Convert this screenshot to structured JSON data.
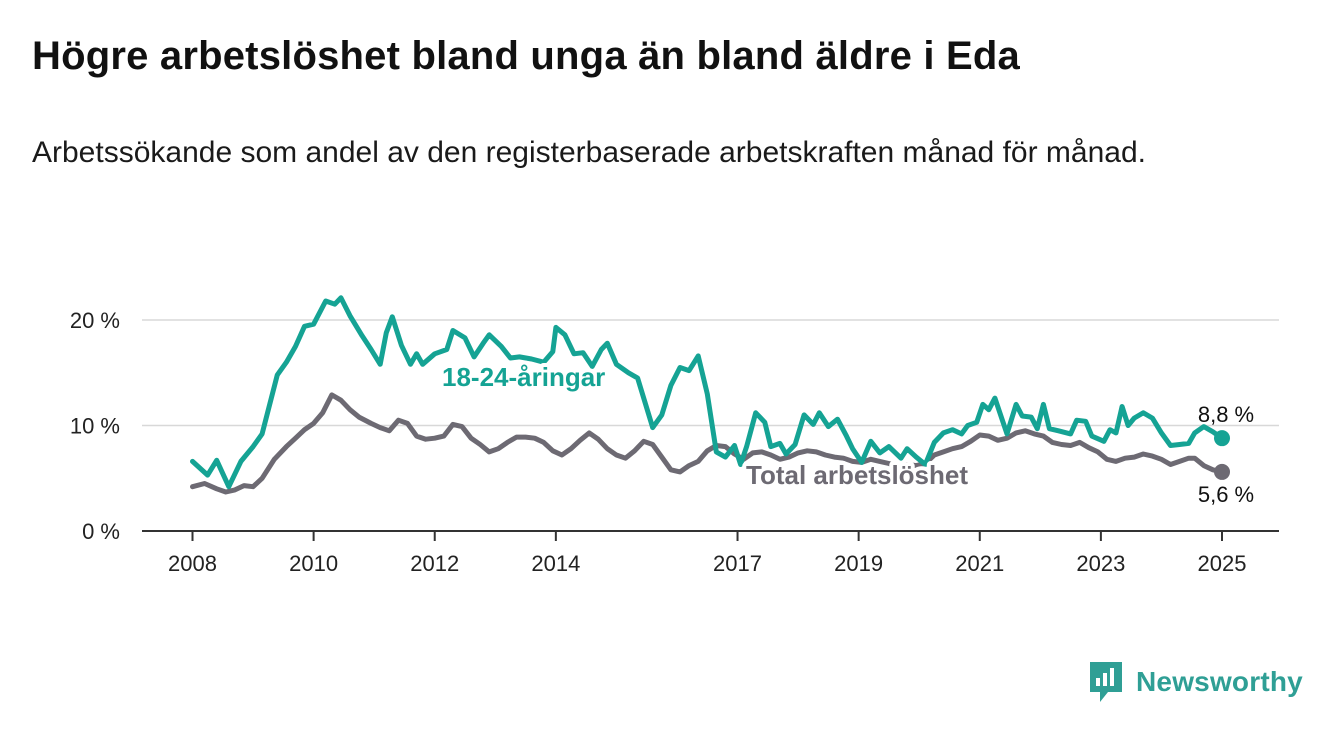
{
  "title": "Högre arbetslöshet bland unga än bland äldre i Eda",
  "subtitle": "Arbetssökande som andel av den registerbaserade arbetskraften månad för månad.",
  "brand": {
    "name": "Newsworthy",
    "icon": "newsworthy-logo-icon"
  },
  "colors": {
    "youth": "#15a394",
    "total": "#6d6a73",
    "axis": "#333333",
    "grid": "#d8d8d8"
  },
  "chart_data": {
    "type": "line",
    "title": "Högre arbetslöshet bland unga än bland äldre i Eda",
    "subtitle": "Arbetssökande som andel av den registerbaserade arbetskraften månad för månad.",
    "xlim": [
      2008,
      2025.35
    ],
    "ylim": [
      0,
      22.5
    ],
    "x_ticks": [
      2008,
      2010,
      2012,
      2014,
      2017,
      2019,
      2021,
      2023,
      2025
    ],
    "y_ticks": [
      0,
      10,
      20
    ],
    "y_tick_labels": [
      "0 %",
      "10 %",
      "20 %"
    ],
    "grid": "horizontal",
    "legend": "inline labels",
    "series": [
      {
        "name": "18-24-åringar",
        "color": "#15a394",
        "end_label": "8,8 %",
        "points": [
          [
            2008.0,
            6.6
          ],
          [
            2008.25,
            5.3
          ],
          [
            2008.4,
            6.7
          ],
          [
            2008.6,
            4.2
          ],
          [
            2008.8,
            6.6
          ],
          [
            2009.0,
            8.0
          ],
          [
            2009.15,
            9.2
          ],
          [
            2009.4,
            14.8
          ],
          [
            2009.55,
            16.0
          ],
          [
            2009.7,
            17.5
          ],
          [
            2009.85,
            19.4
          ],
          [
            2010.0,
            19.6
          ],
          [
            2010.2,
            21.8
          ],
          [
            2010.35,
            21.5
          ],
          [
            2010.45,
            22.1
          ],
          [
            2010.6,
            20.4
          ],
          [
            2010.8,
            18.5
          ],
          [
            2010.95,
            17.2
          ],
          [
            2011.1,
            15.8
          ],
          [
            2011.2,
            18.8
          ],
          [
            2011.3,
            20.3
          ],
          [
            2011.45,
            17.6
          ],
          [
            2011.6,
            15.8
          ],
          [
            2011.7,
            16.8
          ],
          [
            2011.8,
            15.8
          ],
          [
            2012.0,
            16.8
          ],
          [
            2012.2,
            17.2
          ],
          [
            2012.3,
            19.0
          ],
          [
            2012.5,
            18.3
          ],
          [
            2012.65,
            16.5
          ],
          [
            2012.8,
            17.8
          ],
          [
            2012.9,
            18.6
          ],
          [
            2013.1,
            17.5
          ],
          [
            2013.25,
            16.4
          ],
          [
            2013.4,
            16.5
          ],
          [
            2013.6,
            16.3
          ],
          [
            2013.8,
            16.0
          ],
          [
            2013.95,
            17.0
          ],
          [
            2014.0,
            19.3
          ],
          [
            2014.15,
            18.6
          ],
          [
            2014.3,
            16.8
          ],
          [
            2014.45,
            16.9
          ],
          [
            2014.6,
            15.6
          ],
          [
            2014.75,
            17.2
          ],
          [
            2014.85,
            17.8
          ],
          [
            2015.0,
            15.8
          ],
          [
            2015.2,
            15.0
          ],
          [
            2015.35,
            14.5
          ],
          [
            2015.6,
            9.8
          ],
          [
            2015.75,
            11.0
          ],
          [
            2015.9,
            13.8
          ],
          [
            2016.05,
            15.5
          ],
          [
            2016.2,
            15.2
          ],
          [
            2016.35,
            16.6
          ],
          [
            2016.5,
            13.0
          ],
          [
            2016.65,
            7.5
          ],
          [
            2016.8,
            7.0
          ],
          [
            2016.95,
            8.1
          ],
          [
            2017.05,
            6.3
          ],
          [
            2017.15,
            8.0
          ],
          [
            2017.3,
            11.2
          ],
          [
            2017.45,
            10.3
          ],
          [
            2017.55,
            8.0
          ],
          [
            2017.7,
            8.3
          ],
          [
            2017.8,
            7.3
          ],
          [
            2017.95,
            8.2
          ],
          [
            2018.1,
            11.0
          ],
          [
            2018.25,
            10.1
          ],
          [
            2018.35,
            11.2
          ],
          [
            2018.5,
            9.9
          ],
          [
            2018.65,
            10.6
          ],
          [
            2018.8,
            9.0
          ],
          [
            2018.9,
            7.8
          ],
          [
            2019.05,
            6.5
          ],
          [
            2019.2,
            8.5
          ],
          [
            2019.35,
            7.4
          ],
          [
            2019.5,
            8.0
          ],
          [
            2019.7,
            6.9
          ],
          [
            2019.8,
            7.8
          ],
          [
            2019.95,
            7.0
          ],
          [
            2020.1,
            6.3
          ],
          [
            2020.25,
            8.4
          ],
          [
            2020.4,
            9.3
          ],
          [
            2020.55,
            9.6
          ],
          [
            2020.7,
            9.2
          ],
          [
            2020.8,
            10.0
          ],
          [
            2020.95,
            10.3
          ],
          [
            2021.05,
            12.0
          ],
          [
            2021.15,
            11.5
          ],
          [
            2021.25,
            12.6
          ],
          [
            2021.45,
            9.2
          ],
          [
            2021.6,
            12.0
          ],
          [
            2021.7,
            10.9
          ],
          [
            2021.85,
            10.8
          ],
          [
            2021.95,
            9.7
          ],
          [
            2022.05,
            12.0
          ],
          [
            2022.15,
            9.7
          ],
          [
            2022.3,
            9.5
          ],
          [
            2022.5,
            9.2
          ],
          [
            2022.6,
            10.5
          ],
          [
            2022.75,
            10.4
          ],
          [
            2022.85,
            9.0
          ],
          [
            2023.05,
            8.5
          ],
          [
            2023.15,
            9.6
          ],
          [
            2023.25,
            9.3
          ],
          [
            2023.35,
            11.8
          ],
          [
            2023.45,
            10.0
          ],
          [
            2023.55,
            10.7
          ],
          [
            2023.7,
            11.2
          ],
          [
            2023.85,
            10.7
          ],
          [
            2024.0,
            9.3
          ],
          [
            2024.15,
            8.1
          ],
          [
            2024.3,
            8.2
          ],
          [
            2024.45,
            8.3
          ],
          [
            2024.55,
            9.3
          ],
          [
            2024.7,
            9.9
          ],
          [
            2024.85,
            9.4
          ],
          [
            2025.0,
            8.8
          ]
        ]
      },
      {
        "name": "Total arbetslöshet",
        "color": "#6d6a73",
        "end_label": "5,6 %",
        "points": [
          [
            2008.0,
            4.2
          ],
          [
            2008.2,
            4.5
          ],
          [
            2008.4,
            4.0
          ],
          [
            2008.55,
            3.7
          ],
          [
            2008.7,
            3.9
          ],
          [
            2008.85,
            4.3
          ],
          [
            2009.0,
            4.2
          ],
          [
            2009.15,
            5.0
          ],
          [
            2009.35,
            6.8
          ],
          [
            2009.55,
            8.0
          ],
          [
            2009.7,
            8.8
          ],
          [
            2009.85,
            9.6
          ],
          [
            2010.0,
            10.2
          ],
          [
            2010.15,
            11.2
          ],
          [
            2010.3,
            12.9
          ],
          [
            2010.45,
            12.4
          ],
          [
            2010.6,
            11.5
          ],
          [
            2010.75,
            10.8
          ],
          [
            2010.95,
            10.2
          ],
          [
            2011.1,
            9.8
          ],
          [
            2011.25,
            9.5
          ],
          [
            2011.4,
            10.5
          ],
          [
            2011.55,
            10.2
          ],
          [
            2011.7,
            9.0
          ],
          [
            2011.85,
            8.7
          ],
          [
            2012.0,
            8.8
          ],
          [
            2012.15,
            9.0
          ],
          [
            2012.3,
            10.1
          ],
          [
            2012.45,
            9.9
          ],
          [
            2012.6,
            8.8
          ],
          [
            2012.75,
            8.2
          ],
          [
            2012.9,
            7.5
          ],
          [
            2013.05,
            7.8
          ],
          [
            2013.2,
            8.4
          ],
          [
            2013.35,
            8.9
          ],
          [
            2013.5,
            8.9
          ],
          [
            2013.65,
            8.8
          ],
          [
            2013.8,
            8.4
          ],
          [
            2013.95,
            7.6
          ],
          [
            2014.1,
            7.2
          ],
          [
            2014.25,
            7.8
          ],
          [
            2014.4,
            8.6
          ],
          [
            2014.55,
            9.3
          ],
          [
            2014.7,
            8.7
          ],
          [
            2014.85,
            7.8
          ],
          [
            2015.0,
            7.2
          ],
          [
            2015.15,
            6.9
          ],
          [
            2015.3,
            7.6
          ],
          [
            2015.45,
            8.5
          ],
          [
            2015.6,
            8.2
          ],
          [
            2015.75,
            7.0
          ],
          [
            2015.9,
            5.8
          ],
          [
            2016.05,
            5.6
          ],
          [
            2016.2,
            6.2
          ],
          [
            2016.35,
            6.6
          ],
          [
            2016.5,
            7.6
          ],
          [
            2016.65,
            8.1
          ],
          [
            2016.8,
            8.0
          ],
          [
            2016.95,
            7.3
          ],
          [
            2017.1,
            6.8
          ],
          [
            2017.25,
            7.4
          ],
          [
            2017.4,
            7.5
          ],
          [
            2017.55,
            7.2
          ],
          [
            2017.7,
            6.8
          ],
          [
            2017.85,
            7.0
          ],
          [
            2018.0,
            7.4
          ],
          [
            2018.15,
            7.6
          ],
          [
            2018.3,
            7.5
          ],
          [
            2018.45,
            7.2
          ],
          [
            2018.6,
            7.0
          ],
          [
            2018.75,
            6.9
          ],
          [
            2018.9,
            6.6
          ],
          [
            2019.05,
            6.5
          ],
          [
            2019.2,
            6.8
          ],
          [
            2019.35,
            6.6
          ],
          [
            2019.5,
            6.4
          ],
          [
            2019.65,
            6.1
          ],
          [
            2019.8,
            6.3
          ],
          [
            2019.95,
            6.2
          ],
          [
            2020.1,
            6.4
          ],
          [
            2020.25,
            7.2
          ],
          [
            2020.4,
            7.5
          ],
          [
            2020.55,
            7.8
          ],
          [
            2020.7,
            8.0
          ],
          [
            2020.85,
            8.5
          ],
          [
            2021.0,
            9.1
          ],
          [
            2021.15,
            9.0
          ],
          [
            2021.3,
            8.6
          ],
          [
            2021.45,
            8.8
          ],
          [
            2021.6,
            9.3
          ],
          [
            2021.75,
            9.5
          ],
          [
            2021.9,
            9.2
          ],
          [
            2022.05,
            9.0
          ],
          [
            2022.2,
            8.4
          ],
          [
            2022.35,
            8.2
          ],
          [
            2022.5,
            8.1
          ],
          [
            2022.65,
            8.4
          ],
          [
            2022.8,
            7.9
          ],
          [
            2022.95,
            7.5
          ],
          [
            2023.1,
            6.8
          ],
          [
            2023.25,
            6.6
          ],
          [
            2023.4,
            6.9
          ],
          [
            2023.55,
            7.0
          ],
          [
            2023.7,
            7.3
          ],
          [
            2023.85,
            7.1
          ],
          [
            2024.0,
            6.8
          ],
          [
            2024.15,
            6.3
          ],
          [
            2024.3,
            6.6
          ],
          [
            2024.45,
            6.9
          ],
          [
            2024.55,
            6.9
          ],
          [
            2024.7,
            6.2
          ],
          [
            2024.85,
            5.8
          ],
          [
            2025.0,
            5.6
          ]
        ]
      }
    ]
  }
}
